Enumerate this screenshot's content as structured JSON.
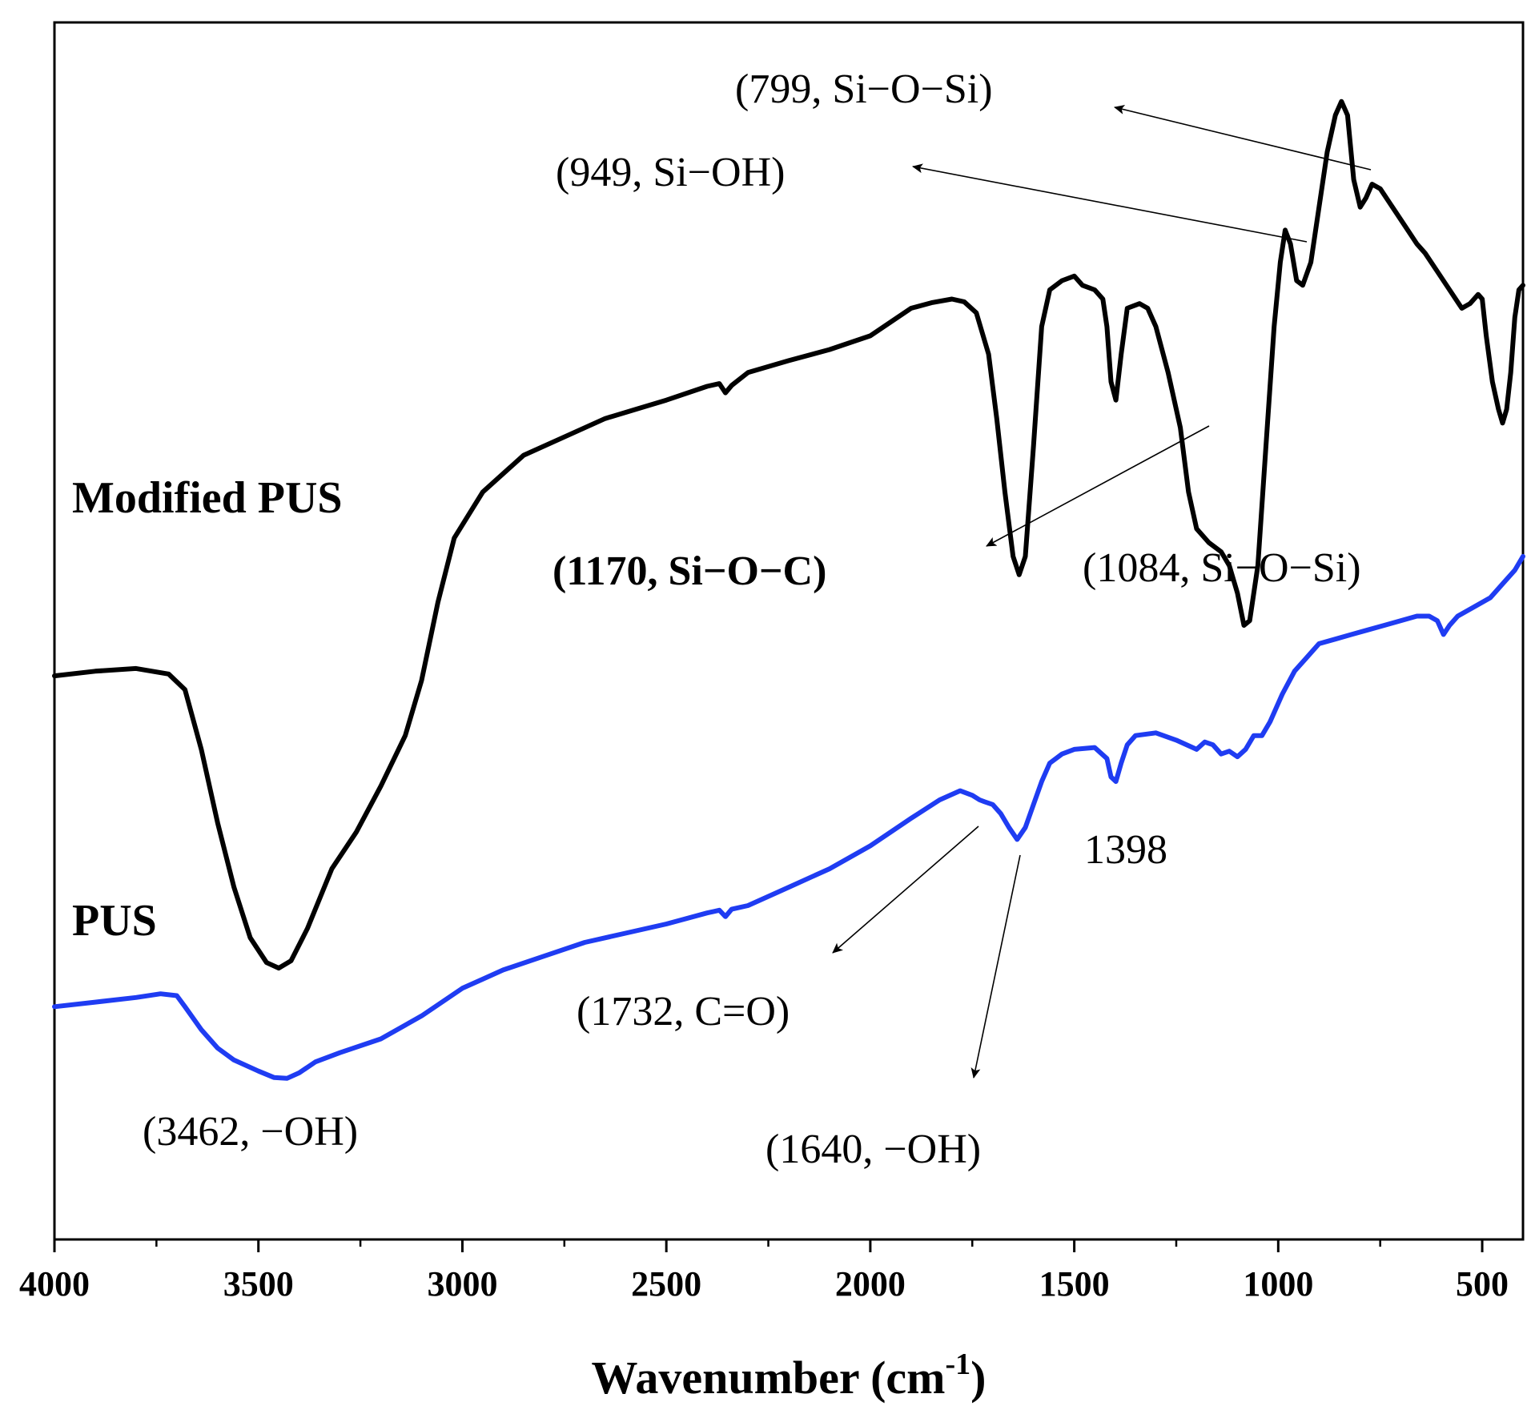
{
  "chart_data": {
    "type": "line",
    "title": "",
    "xlabel": "Wavenumber (cm",
    "xlabel_sup": "-1",
    "xlabel_close": ")",
    "ylabel": "",
    "xlim": [
      4000,
      400
    ],
    "x_reversed": true,
    "x_ticks": [
      4000,
      3500,
      3000,
      2500,
      2000,
      1500,
      1000,
      500
    ],
    "grid": false,
    "series": [
      {
        "name": "Modified PUS",
        "color": "#000000",
        "points": [
          [
            4000,
            50.0
          ],
          [
            3900,
            50.5
          ],
          [
            3800,
            50.8
          ],
          [
            3720,
            50.2
          ],
          [
            3680,
            48.5
          ],
          [
            3640,
            42.0
          ],
          [
            3600,
            34.0
          ],
          [
            3560,
            27.0
          ],
          [
            3520,
            21.5
          ],
          [
            3480,
            18.8
          ],
          [
            3450,
            18.2
          ],
          [
            3420,
            19.0
          ],
          [
            3380,
            22.5
          ],
          [
            3320,
            29.0
          ],
          [
            3260,
            33.0
          ],
          [
            3200,
            38.0
          ],
          [
            3140,
            43.5
          ],
          [
            3100,
            49.5
          ],
          [
            3060,
            58.0
          ],
          [
            3020,
            65.0
          ],
          [
            2950,
            70.0
          ],
          [
            2850,
            74.0
          ],
          [
            2750,
            76.0
          ],
          [
            2650,
            78.0
          ],
          [
            2500,
            80.0
          ],
          [
            2400,
            81.5
          ],
          [
            2370,
            81.8
          ],
          [
            2355,
            80.8
          ],
          [
            2340,
            81.6
          ],
          [
            2300,
            83.0
          ],
          [
            2200,
            84.3
          ],
          [
            2100,
            85.5
          ],
          [
            2000,
            87.0
          ],
          [
            1900,
            90.0
          ],
          [
            1850,
            90.6
          ],
          [
            1800,
            91.0
          ],
          [
            1770,
            90.7
          ],
          [
            1740,
            89.5
          ],
          [
            1710,
            85.0
          ],
          [
            1690,
            78.0
          ],
          [
            1670,
            70.0
          ],
          [
            1650,
            63.0
          ],
          [
            1635,
            61.0
          ],
          [
            1620,
            63.0
          ],
          [
            1600,
            75.0
          ],
          [
            1580,
            88.0
          ],
          [
            1560,
            92.0
          ],
          [
            1530,
            93.0
          ],
          [
            1500,
            93.5
          ],
          [
            1480,
            92.5
          ],
          [
            1450,
            92.0
          ],
          [
            1430,
            91.0
          ],
          [
            1420,
            88.0
          ],
          [
            1410,
            82.0
          ],
          [
            1398,
            80.0
          ],
          [
            1385,
            85.0
          ],
          [
            1370,
            90.0
          ],
          [
            1340,
            90.5
          ],
          [
            1320,
            90.0
          ],
          [
            1300,
            88.0
          ],
          [
            1270,
            83.0
          ],
          [
            1240,
            77.0
          ],
          [
            1220,
            70.0
          ],
          [
            1200,
            66.0
          ],
          [
            1170,
            64.5
          ],
          [
            1140,
            63.5
          ],
          [
            1120,
            62.0
          ],
          [
            1100,
            59.0
          ],
          [
            1084,
            55.5
          ],
          [
            1070,
            56.0
          ],
          [
            1050,
            62.0
          ],
          [
            1030,
            75.0
          ],
          [
            1010,
            88.0
          ],
          [
            995,
            95.0
          ],
          [
            983,
            98.5
          ],
          [
            970,
            97.0
          ],
          [
            955,
            93.0
          ],
          [
            940,
            92.5
          ],
          [
            920,
            95.0
          ],
          [
            900,
            101.0
          ],
          [
            880,
            107.0
          ],
          [
            860,
            111.0
          ],
          [
            845,
            112.5
          ],
          [
            830,
            111.0
          ],
          [
            815,
            104.0
          ],
          [
            799,
            101.0
          ],
          [
            785,
            102.0
          ],
          [
            770,
            103.5
          ],
          [
            750,
            103.0
          ],
          [
            720,
            101.0
          ],
          [
            690,
            99.0
          ],
          [
            660,
            97.0
          ],
          [
            640,
            96.0
          ],
          [
            610,
            94.0
          ],
          [
            580,
            92.0
          ],
          [
            550,
            90.0
          ],
          [
            530,
            90.5
          ],
          [
            510,
            91.5
          ],
          [
            500,
            91.0
          ],
          [
            490,
            87.0
          ],
          [
            475,
            82.0
          ],
          [
            460,
            79.0
          ],
          [
            450,
            77.5
          ],
          [
            440,
            79.0
          ],
          [
            430,
            83.0
          ],
          [
            420,
            89.0
          ],
          [
            410,
            92.0
          ],
          [
            400,
            92.5
          ]
        ]
      },
      {
        "name": "PUS",
        "color": "#1f3cf2",
        "points": [
          [
            4000,
            14.0
          ],
          [
            3900,
            14.5
          ],
          [
            3800,
            15.0
          ],
          [
            3740,
            15.4
          ],
          [
            3700,
            15.2
          ],
          [
            3680,
            14.0
          ],
          [
            3640,
            11.5
          ],
          [
            3600,
            9.5
          ],
          [
            3560,
            8.2
          ],
          [
            3500,
            7.0
          ],
          [
            3462,
            6.3
          ],
          [
            3430,
            6.2
          ],
          [
            3400,
            6.8
          ],
          [
            3360,
            8.0
          ],
          [
            3300,
            9.0
          ],
          [
            3200,
            10.5
          ],
          [
            3100,
            13.0
          ],
          [
            3000,
            16.0
          ],
          [
            2950,
            17.0
          ],
          [
            2900,
            18.0
          ],
          [
            2800,
            19.5
          ],
          [
            2700,
            21.0
          ],
          [
            2600,
            22.0
          ],
          [
            2500,
            23.0
          ],
          [
            2400,
            24.2
          ],
          [
            2370,
            24.5
          ],
          [
            2355,
            23.8
          ],
          [
            2340,
            24.6
          ],
          [
            2300,
            25.0
          ],
          [
            2200,
            27.0
          ],
          [
            2100,
            29.0
          ],
          [
            2000,
            31.5
          ],
          [
            1900,
            34.5
          ],
          [
            1830,
            36.5
          ],
          [
            1780,
            37.5
          ],
          [
            1750,
            37.0
          ],
          [
            1732,
            36.5
          ],
          [
            1720,
            36.3
          ],
          [
            1700,
            36.0
          ],
          [
            1680,
            35.0
          ],
          [
            1660,
            33.5
          ],
          [
            1640,
            32.2
          ],
          [
            1620,
            33.5
          ],
          [
            1600,
            36.0
          ],
          [
            1580,
            38.5
          ],
          [
            1560,
            40.5
          ],
          [
            1530,
            41.5
          ],
          [
            1500,
            42.0
          ],
          [
            1450,
            42.2
          ],
          [
            1420,
            41.0
          ],
          [
            1410,
            39.0
          ],
          [
            1398,
            38.5
          ],
          [
            1385,
            40.5
          ],
          [
            1370,
            42.5
          ],
          [
            1350,
            43.5
          ],
          [
            1300,
            43.8
          ],
          [
            1250,
            43.0
          ],
          [
            1200,
            42.0
          ],
          [
            1180,
            42.8
          ],
          [
            1160,
            42.5
          ],
          [
            1140,
            41.5
          ],
          [
            1120,
            41.8
          ],
          [
            1100,
            41.2
          ],
          [
            1080,
            42.0
          ],
          [
            1060,
            43.5
          ],
          [
            1040,
            43.5
          ],
          [
            1020,
            45.0
          ],
          [
            990,
            48.0
          ],
          [
            960,
            50.5
          ],
          [
            930,
            52.0
          ],
          [
            900,
            53.5
          ],
          [
            860,
            54.0
          ],
          [
            820,
            54.5
          ],
          [
            780,
            55.0
          ],
          [
            740,
            55.5
          ],
          [
            700,
            56.0
          ],
          [
            660,
            56.5
          ],
          [
            630,
            56.5
          ],
          [
            610,
            56.0
          ],
          [
            595,
            54.5
          ],
          [
            580,
            55.5
          ],
          [
            560,
            56.5
          ],
          [
            520,
            57.5
          ],
          [
            480,
            58.5
          ],
          [
            450,
            60.0
          ],
          [
            420,
            61.5
          ],
          [
            400,
            63.0
          ]
        ]
      }
    ],
    "annotations": [
      {
        "text": "(799, Si−O−Si)",
        "bold": false
      },
      {
        "text": "(949, Si−OH)",
        "bold": false
      },
      {
        "text": "(1170, Si−O−C)",
        "bold": true
      },
      {
        "text": "(1084, Si−O−Si)",
        "bold": false
      },
      {
        "text": "1398",
        "bold": false
      },
      {
        "text": "(1732, C=O)",
        "bold": false
      },
      {
        "text": "(1640, −OH)",
        "bold": false
      },
      {
        "text": "(3462, −OH)",
        "bold": false
      }
    ],
    "series_labels": [
      "Modified PUS",
      "PUS"
    ]
  }
}
